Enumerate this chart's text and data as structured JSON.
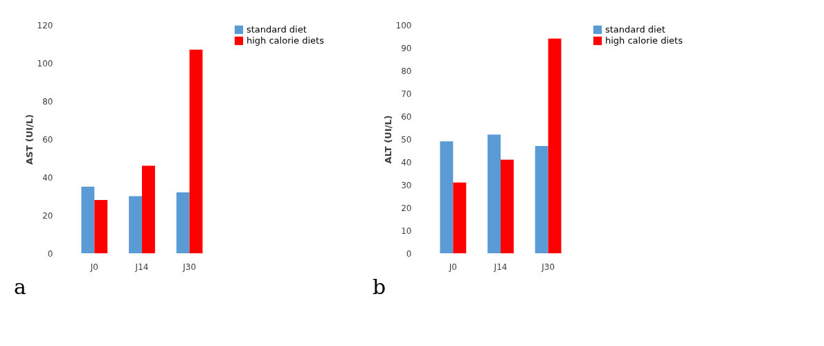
{
  "chart_data": [
    {
      "type": "bar",
      "categories": [
        "J0",
        "J14",
        "J30"
      ],
      "ylabel": "AST (UI/L)",
      "ylim": [
        0,
        120
      ],
      "yticks": [
        0,
        20,
        40,
        60,
        80,
        100,
        120
      ],
      "grid": false,
      "legend": "right",
      "annotations": [
        "a"
      ],
      "series": [
        {
          "name": "standard diet",
          "color": "#5b9bd5",
          "values": [
            35,
            30,
            32
          ]
        },
        {
          "name": "high calorie diets",
          "color": "#ff0000",
          "values": [
            28,
            46,
            107
          ]
        }
      ]
    },
    {
      "type": "bar",
      "categories": [
        "J0",
        "J14",
        "J30"
      ],
      "ylabel": "ALT (UI/L)",
      "ylim": [
        0,
        100
      ],
      "yticks": [
        0,
        10,
        20,
        30,
        40,
        50,
        60,
        70,
        80,
        90,
        100
      ],
      "grid": false,
      "legend": "right",
      "annotations": [
        "b"
      ],
      "series": [
        {
          "name": "standard diet",
          "color": "#5b9bd5",
          "values": [
            49,
            52,
            47
          ]
        },
        {
          "name": "high calorie diets",
          "color": "#ff0000",
          "values": [
            31,
            41,
            94
          ]
        }
      ]
    }
  ]
}
